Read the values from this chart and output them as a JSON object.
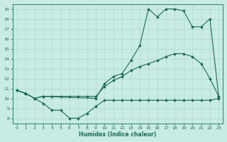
{
  "xlabel": "Humidex (Indice chaleur)",
  "xlim": [
    -0.5,
    23.5
  ],
  "ylim": [
    7.5,
    19.5
  ],
  "yticks": [
    8,
    9,
    10,
    11,
    12,
    13,
    14,
    15,
    16,
    17,
    18,
    19
  ],
  "xticks": [
    0,
    1,
    2,
    3,
    4,
    5,
    6,
    7,
    8,
    9,
    10,
    11,
    12,
    13,
    14,
    15,
    16,
    17,
    18,
    19,
    20,
    21,
    22,
    23
  ],
  "bg_color": "#c8ebe3",
  "line_color": "#1a6b5a",
  "grid_color": "#b0d8ce",
  "line_max_x": [
    0,
    1,
    2,
    3,
    9,
    10,
    11,
    12,
    13,
    14,
    15,
    16,
    17,
    18,
    19,
    20,
    21,
    22,
    23
  ],
  "line_max_y": [
    10.8,
    10.5,
    10.0,
    10.2,
    10.0,
    11.5,
    12.2,
    12.5,
    13.8,
    15.3,
    19.0,
    18.2,
    19.0,
    19.0,
    18.8,
    17.2,
    17.2,
    18.0,
    10.2
  ],
  "line_mean_x": [
    0,
    1,
    2,
    3,
    4,
    5,
    6,
    7,
    8,
    9,
    10,
    11,
    12,
    13,
    14,
    15,
    16,
    17,
    18,
    19,
    20,
    21,
    22,
    23
  ],
  "line_mean_y": [
    10.8,
    10.5,
    10.0,
    10.2,
    10.2,
    10.2,
    10.2,
    10.2,
    10.2,
    10.2,
    11.2,
    11.8,
    12.2,
    12.8,
    13.2,
    13.5,
    13.8,
    14.2,
    14.5,
    14.5,
    14.2,
    13.5,
    12.0,
    10.2
  ],
  "line_min_x": [
    0,
    1,
    2,
    3,
    4,
    5,
    6,
    7,
    8,
    9,
    10,
    11,
    12,
    13,
    14,
    15,
    16,
    17,
    18,
    19,
    20,
    21,
    22,
    23
  ],
  "line_min_y": [
    10.8,
    10.5,
    10.0,
    9.5,
    8.8,
    8.8,
    8.0,
    8.0,
    8.5,
    9.2,
    9.8,
    9.8,
    9.8,
    9.8,
    9.8,
    9.8,
    9.8,
    9.8,
    9.8,
    9.8,
    9.8,
    9.8,
    9.8,
    10.0
  ]
}
